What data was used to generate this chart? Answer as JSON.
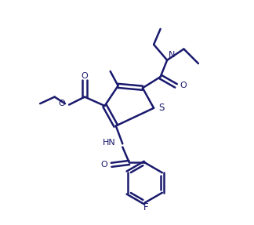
{
  "bg_color": "#ffffff",
  "line_color": "#1a1a6e",
  "line_width": 1.8,
  "figsize": [
    3.24,
    2.87
  ],
  "dpi": 100,
  "xlim": [
    0,
    10
  ],
  "ylim": [
    0,
    10
  ]
}
